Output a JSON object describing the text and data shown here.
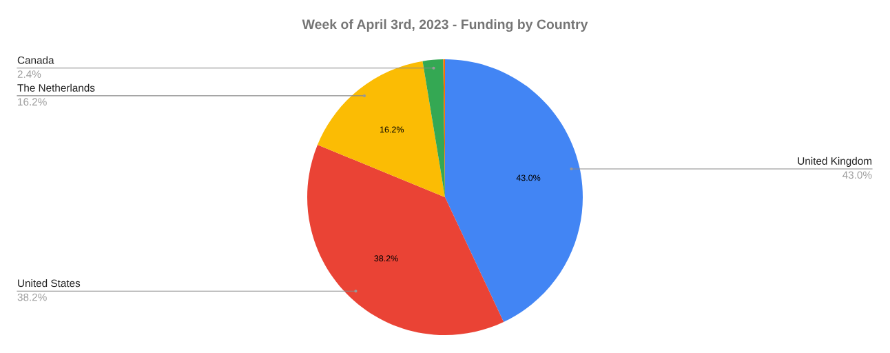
{
  "chart_data": {
    "type": "pie",
    "title": "Week of April 3rd, 2023 - Funding by Country",
    "categories": [
      "United Kingdom",
      "United States",
      "The Netherlands",
      "Canada",
      null
    ],
    "values": [
      43.0,
      38.2,
      16.2,
      2.4,
      0.2
    ],
    "colors": [
      "#4285f4",
      "#ea4335",
      "#fbbc04",
      "#34a853",
      "#ff6d01"
    ],
    "value_labels": [
      "43.0%",
      "38.2%",
      "16.2%",
      null,
      null
    ],
    "annotations": [
      "43.0%",
      "38.2%",
      "16.2%",
      "2.4%"
    ],
    "legend": false
  }
}
